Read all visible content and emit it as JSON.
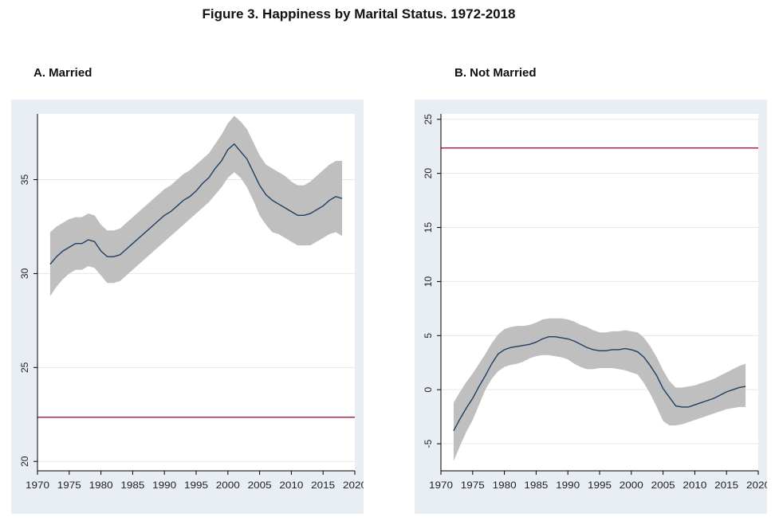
{
  "figure_title": "Figure 3.  Happiness by Marital Status. 1972-2018",
  "chart_data": [
    {
      "type": "line",
      "title": "A. Married",
      "xlim": [
        1970,
        2020
      ],
      "ylim": [
        19.5,
        38.5
      ],
      "xticks": [
        1970,
        1975,
        1980,
        1985,
        1990,
        1995,
        2000,
        2005,
        2010,
        2015,
        2020
      ],
      "yticks": [
        20,
        25,
        30,
        35
      ],
      "reference_line": 22.35,
      "grid": true,
      "colors": {
        "line": "#1f3f60",
        "band": "#bfbfbf",
        "reference": "#b0244a",
        "background": "#e8eef3"
      },
      "x": [
        1972,
        1973,
        1974,
        1975,
        1976,
        1977,
        1978,
        1979,
        1980,
        1981,
        1982,
        1983,
        1984,
        1985,
        1986,
        1987,
        1988,
        1989,
        1990,
        1991,
        1992,
        1993,
        1994,
        1995,
        1996,
        1997,
        1998,
        1999,
        2000,
        2001,
        2002,
        2003,
        2004,
        2005,
        2006,
        2007,
        2008,
        2009,
        2010,
        2011,
        2012,
        2013,
        2014,
        2015,
        2016,
        2017,
        2018
      ],
      "series": [
        {
          "y": [
            30.5,
            30.9,
            31.2,
            31.4,
            31.6,
            31.6,
            31.8,
            31.7,
            31.2,
            30.9,
            30.9,
            31.0,
            31.3,
            31.6,
            31.9,
            32.2,
            32.5,
            32.8,
            33.1,
            33.3,
            33.6,
            33.9,
            34.1,
            34.4,
            34.8,
            35.1,
            35.6,
            36.0,
            36.6,
            36.9,
            36.5,
            36.1,
            35.4,
            34.7,
            34.2,
            33.9,
            33.7,
            33.5,
            33.3,
            33.1,
            33.1,
            33.2,
            33.4,
            33.6,
            33.9,
            34.1,
            34.0
          ],
          "lower": [
            28.8,
            29.3,
            29.7,
            30.0,
            30.2,
            30.2,
            30.4,
            30.3,
            29.9,
            29.5,
            29.5,
            29.6,
            29.9,
            30.2,
            30.5,
            30.8,
            31.1,
            31.4,
            31.7,
            32.0,
            32.3,
            32.6,
            32.9,
            33.2,
            33.5,
            33.8,
            34.2,
            34.6,
            35.1,
            35.4,
            35.1,
            34.6,
            33.9,
            33.1,
            32.6,
            32.2,
            32.1,
            31.9,
            31.7,
            31.5,
            31.5,
            31.5,
            31.7,
            31.9,
            32.1,
            32.2,
            32.0
          ],
          "upper": [
            32.2,
            32.5,
            32.7,
            32.9,
            33.0,
            33.0,
            33.2,
            33.1,
            32.6,
            32.3,
            32.3,
            32.4,
            32.7,
            33.0,
            33.3,
            33.6,
            33.9,
            34.2,
            34.5,
            34.7,
            35.0,
            35.3,
            35.5,
            35.8,
            36.1,
            36.4,
            36.9,
            37.4,
            38.0,
            38.4,
            38.1,
            37.7,
            37.0,
            36.3,
            35.8,
            35.6,
            35.4,
            35.2,
            34.9,
            34.7,
            34.7,
            34.9,
            35.2,
            35.5,
            35.8,
            36.0,
            36.0
          ]
        }
      ]
    },
    {
      "type": "line",
      "title": "B. Not Married",
      "xlim": [
        1970,
        2020
      ],
      "ylim": [
        -7.5,
        25.5
      ],
      "xticks": [
        1970,
        1975,
        1980,
        1985,
        1990,
        1995,
        2000,
        2005,
        2010,
        2015,
        2020
      ],
      "yticks": [
        -5,
        0,
        5,
        10,
        15,
        20,
        25
      ],
      "reference_line": 22.35,
      "grid": true,
      "colors": {
        "line": "#1f3f60",
        "band": "#bfbfbf",
        "reference": "#b0244a",
        "background": "#e8eef3"
      },
      "x": [
        1972,
        1973,
        1974,
        1975,
        1976,
        1977,
        1978,
        1979,
        1980,
        1981,
        1982,
        1983,
        1984,
        1985,
        1986,
        1987,
        1988,
        1989,
        1990,
        1991,
        1992,
        1993,
        1994,
        1995,
        1996,
        1997,
        1998,
        1999,
        2000,
        2001,
        2002,
        2003,
        2004,
        2005,
        2006,
        2007,
        2008,
        2009,
        2010,
        2011,
        2012,
        2013,
        2014,
        2015,
        2016,
        2017,
        2018
      ],
      "series": [
        {
          "y": [
            -3.8,
            -2.7,
            -1.7,
            -0.8,
            0.3,
            1.3,
            2.4,
            3.3,
            3.7,
            3.9,
            4.0,
            4.1,
            4.2,
            4.4,
            4.7,
            4.9,
            4.9,
            4.8,
            4.7,
            4.5,
            4.2,
            3.9,
            3.7,
            3.6,
            3.6,
            3.7,
            3.7,
            3.8,
            3.7,
            3.5,
            3.0,
            2.2,
            1.3,
            0.1,
            -0.7,
            -1.5,
            -1.6,
            -1.6,
            -1.4,
            -1.2,
            -1.0,
            -0.8,
            -0.5,
            -0.2,
            0.0,
            0.2,
            0.3
          ],
          "lower": [
            -6.6,
            -5.2,
            -3.9,
            -2.8,
            -1.4,
            0.0,
            1.0,
            1.7,
            2.1,
            2.3,
            2.4,
            2.6,
            2.9,
            3.1,
            3.2,
            3.2,
            3.1,
            3.0,
            2.8,
            2.4,
            2.1,
            1.9,
            1.9,
            2.0,
            2.0,
            2.0,
            1.9,
            1.8,
            1.6,
            1.4,
            0.6,
            -0.4,
            -1.6,
            -2.9,
            -3.3,
            -3.3,
            -3.2,
            -3.0,
            -2.8,
            -2.6,
            -2.4,
            -2.2,
            -2.0,
            -1.8,
            -1.7,
            -1.6,
            -1.6
          ],
          "upper": [
            -1.2,
            -0.2,
            0.7,
            1.5,
            2.4,
            3.3,
            4.3,
            5.1,
            5.6,
            5.8,
            5.9,
            5.9,
            6.0,
            6.2,
            6.5,
            6.6,
            6.6,
            6.6,
            6.5,
            6.3,
            6.0,
            5.8,
            5.5,
            5.3,
            5.3,
            5.4,
            5.4,
            5.5,
            5.4,
            5.3,
            4.8,
            4.0,
            3.0,
            1.8,
            0.8,
            0.2,
            0.2,
            0.3,
            0.4,
            0.6,
            0.8,
            1.0,
            1.3,
            1.6,
            1.9,
            2.2,
            2.4
          ]
        }
      ]
    }
  ]
}
